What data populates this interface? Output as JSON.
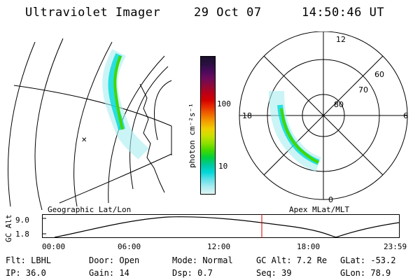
{
  "header": {
    "instrument": "Ultraviolet Imager",
    "date": "29 Oct 07",
    "time": "14:50:46 UT"
  },
  "colorbar": {
    "unit_label": "photon cm⁻²s⁻¹",
    "ticks": [
      "100",
      "10"
    ],
    "colors": [
      "#1a0f2e",
      "#2a1040",
      "#4a0a5a",
      "#6e0a5c",
      "#8c0a3a",
      "#b8001a",
      "#d40000",
      "#e83000",
      "#f06a00",
      "#f4a000",
      "#f0d000",
      "#c8e000",
      "#8ce000",
      "#40d800",
      "#00d040",
      "#00c8a0",
      "#00d8d8",
      "#60e0e8",
      "#a8ecf0",
      "#e0f4f4"
    ]
  },
  "left_map": {
    "label": "Geographic Lat/Lon"
  },
  "right_map": {
    "label": "Apex MLat/MLT",
    "lat_labels": [
      "60",
      "70",
      "80"
    ],
    "mlt_labels": {
      "top": "12",
      "bottom": "0",
      "left": "18",
      "right": "6"
    }
  },
  "altitude_plot": {
    "ylabel": "GC Alt",
    "yticks": [
      "9.0",
      "1.8"
    ],
    "xticks": [
      "00:00",
      "06:00",
      "12:00",
      "18:00",
      "23:59"
    ],
    "current_time_marker": "14:50"
  },
  "info": {
    "flt": "Flt: LBHL",
    "ip": "IP: 36.0",
    "door": "Door: Open",
    "gain": "Gain: 14",
    "mode": "Mode: Normal",
    "dsp": "Dsp:    0.7",
    "gc_alt": "GC Alt: 7.2 Re",
    "seq": "Seq: 39",
    "glat": "GLat: -53.2",
    "glon": "GLon: 78.9"
  }
}
